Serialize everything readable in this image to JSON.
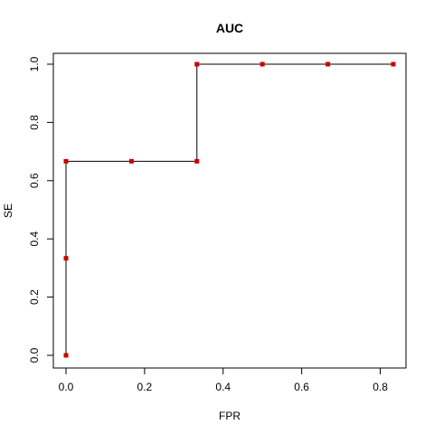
{
  "chart_data": {
    "type": "line",
    "title": "AUC",
    "xlabel": "FPR",
    "ylabel": "SE",
    "xlim": [
      0,
      0.8333
    ],
    "ylim": [
      0,
      1
    ],
    "x_ticks": [
      "0.0",
      "0.2",
      "0.4",
      "0.6",
      "0.8"
    ],
    "y_ticks": [
      "0.0",
      "0.2",
      "0.4",
      "0.6",
      "0.8",
      "1.0"
    ],
    "grid": false,
    "line_color": "#000000",
    "point_color": "#cc0000",
    "series": [
      {
        "x": [
          0,
          0,
          0,
          0.1667,
          0.3333,
          0.3333,
          0.5,
          0.6667,
          0.8333
        ],
        "y": [
          0,
          0.3333,
          0.6667,
          0.6667,
          0.6667,
          1,
          1,
          1,
          1
        ]
      }
    ]
  }
}
